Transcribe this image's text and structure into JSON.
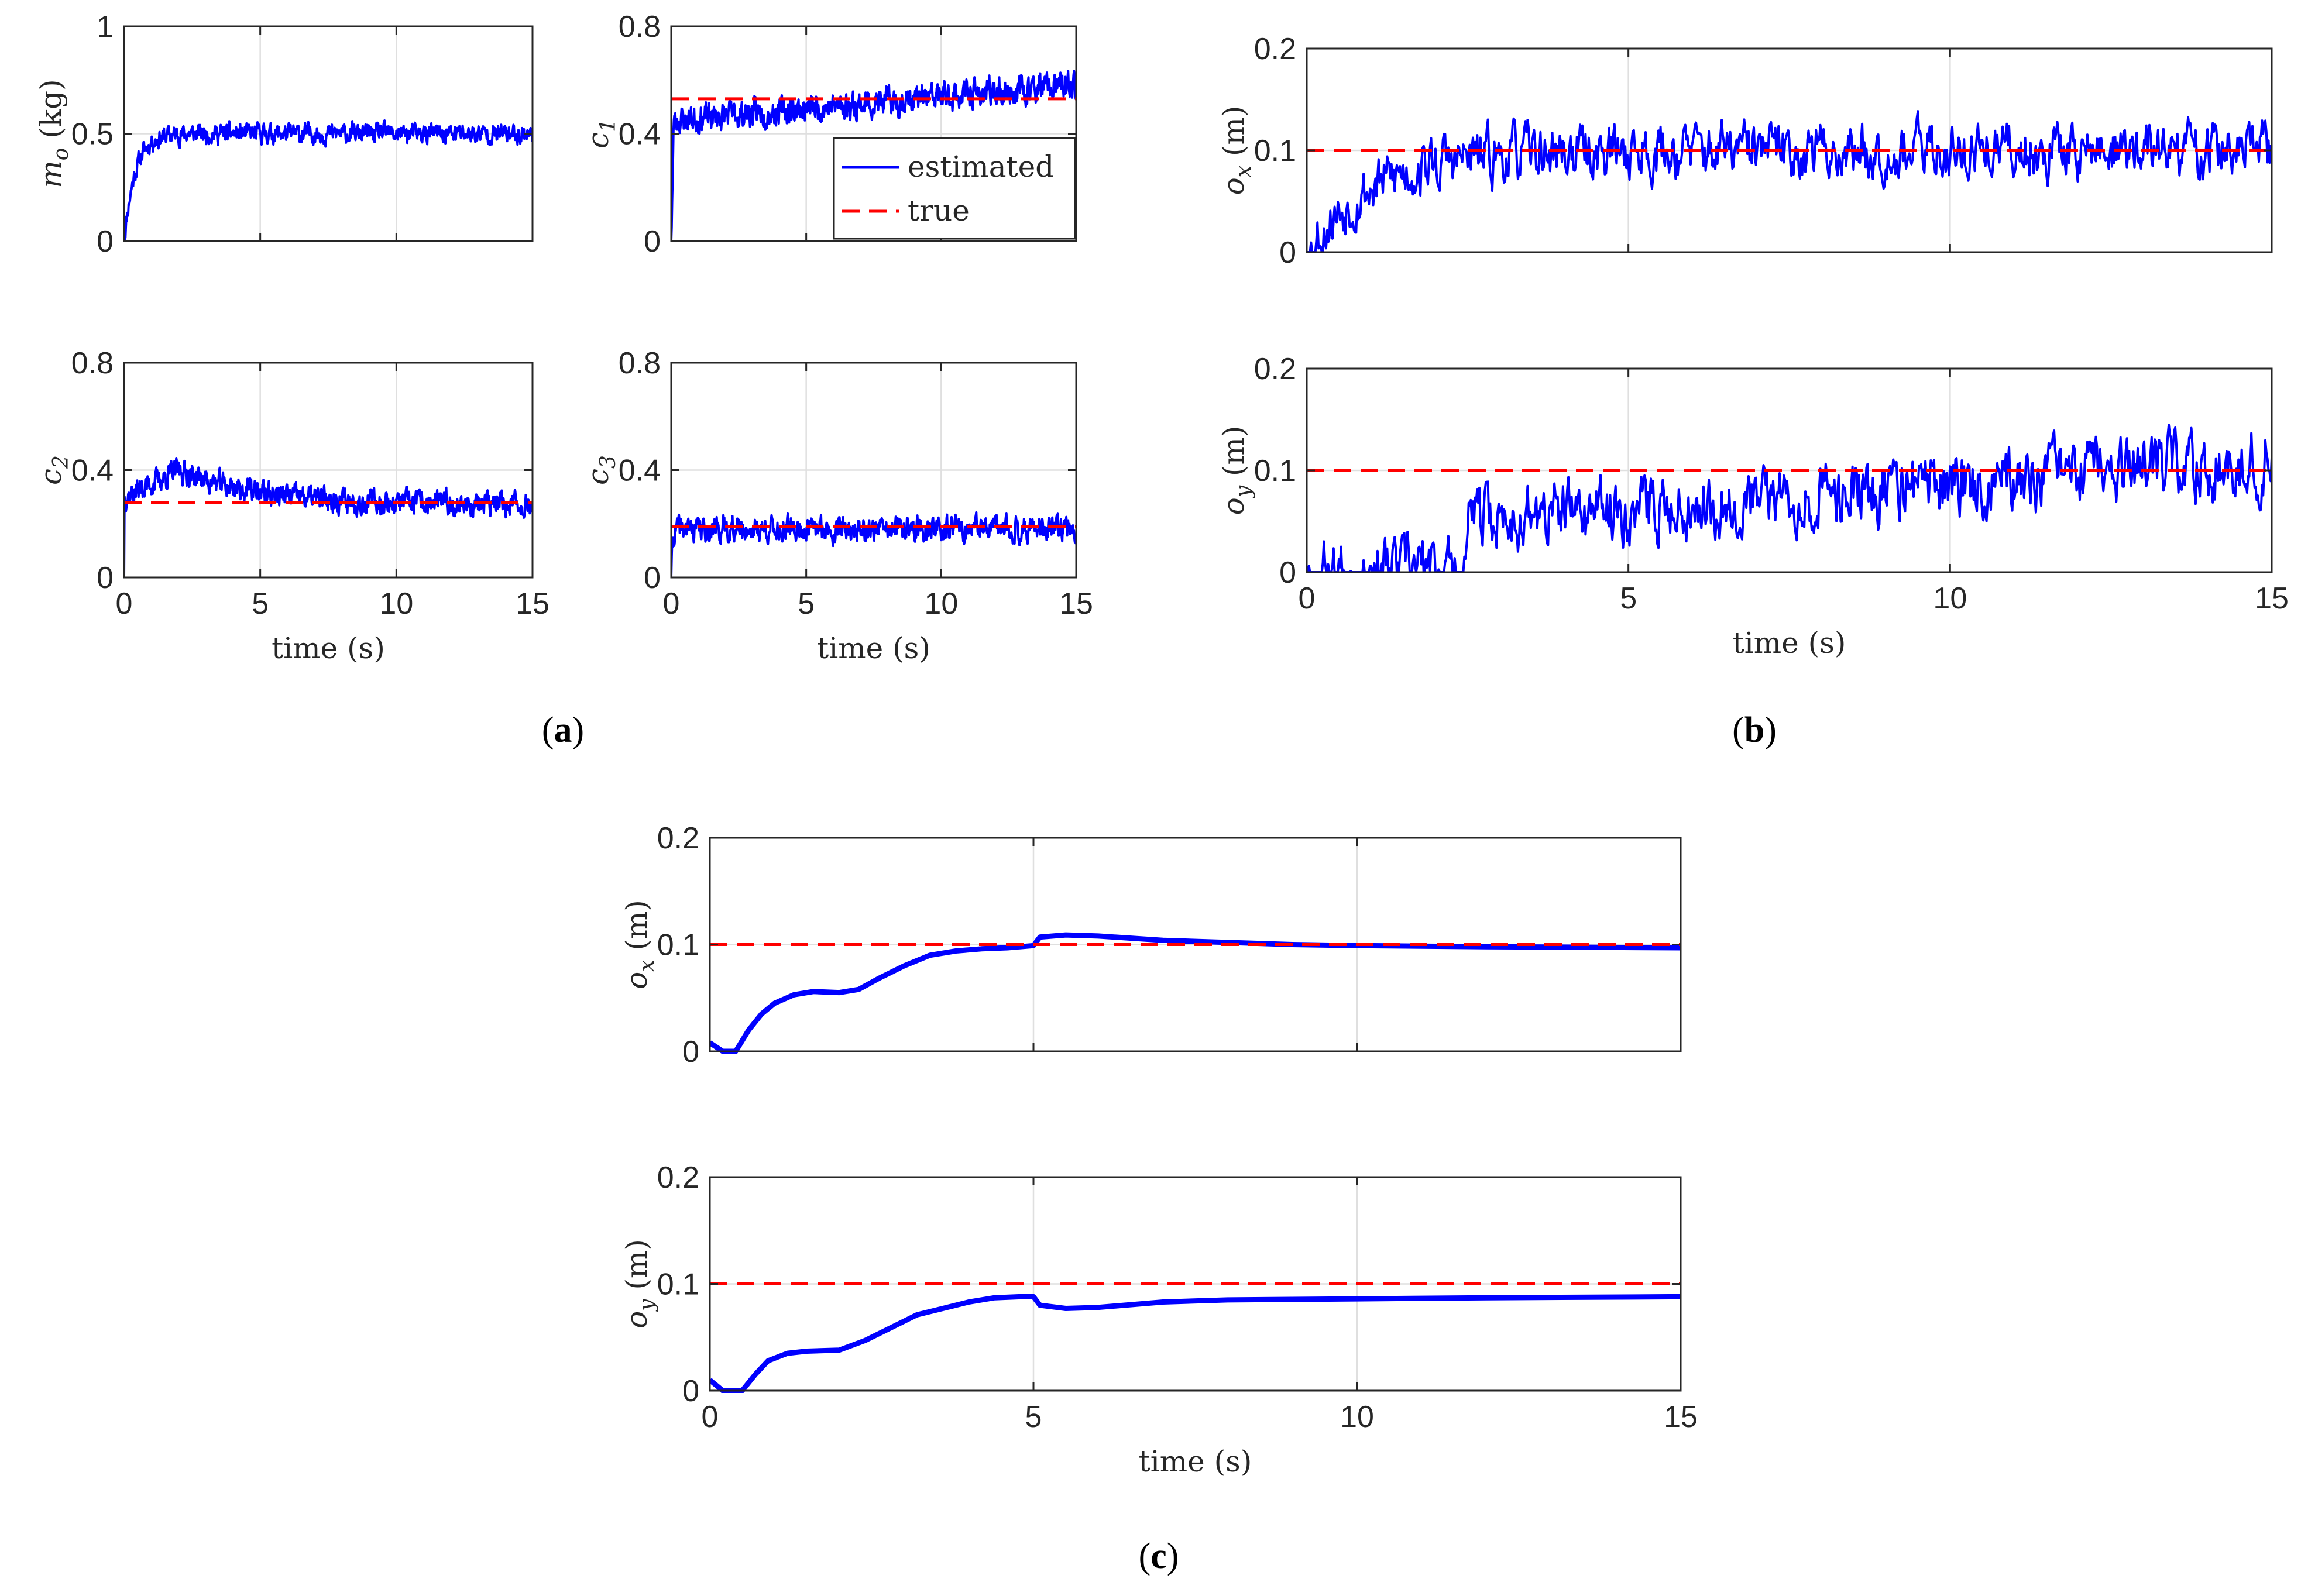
{
  "colors": {
    "estimated": "#0000ff",
    "true": "#ff0000",
    "axis": "#262626",
    "grid": "#dfdfdf"
  },
  "legend": {
    "estimated": "estimated",
    "true": "true",
    "placement": "top-right of panel c1"
  },
  "captions": {
    "a": "a",
    "b": "b",
    "c": "c"
  },
  "chart_data": [
    {
      "id": "a_mo",
      "group": "a",
      "type": "line",
      "title": "",
      "ylabel": {
        "sym": "m",
        "sub": "o",
        "unit": " (kg)"
      },
      "xlabel": "",
      "xlim": [
        0,
        15
      ],
      "ylim": [
        0,
        1
      ],
      "yticks": [
        "0",
        "0.5",
        "1"
      ],
      "xticks": [],
      "true_value": null,
      "series": [
        {
          "name": "estimated",
          "kind": "noisy",
          "steady": 0.5,
          "rise_time": 0.4,
          "noise": 0.035,
          "seed": 11
        }
      ],
      "grid": true
    },
    {
      "id": "a_c1",
      "group": "a",
      "type": "line",
      "title": "",
      "ylabel": {
        "sym": "c",
        "sub": "1",
        "unit": ""
      },
      "xlabel": "",
      "xlim": [
        0,
        15
      ],
      "ylim": [
        0,
        0.8
      ],
      "yticks": [
        "0",
        "0.4",
        "0.8"
      ],
      "xticks": [],
      "true_value": 0.53,
      "series": [
        {
          "name": "estimated",
          "kind": "noisy_drift",
          "start": 0.45,
          "end": 0.58,
          "noise": 0.04,
          "seed": 23
        },
        {
          "name": "true",
          "value": 0.53
        }
      ],
      "grid": true,
      "legend": true
    },
    {
      "id": "a_c2",
      "group": "a",
      "type": "line",
      "title": "",
      "ylabel": {
        "sym": "c",
        "sub": "2",
        "unit": ""
      },
      "xlabel": "time (s)",
      "xlim": [
        0,
        15
      ],
      "ylim": [
        0,
        0.8
      ],
      "yticks": [
        "0",
        "0.4",
        "0.8"
      ],
      "xticks": [
        "0",
        "5",
        "10",
        "15"
      ],
      "true_value": 0.28,
      "series": [
        {
          "name": "estimated",
          "kind": "noisy_decay",
          "peak": 0.4,
          "peak_time": 2,
          "end": 0.27,
          "noise": 0.035,
          "seed": 37
        },
        {
          "name": "true",
          "value": 0.28
        }
      ],
      "grid": true
    },
    {
      "id": "a_c3",
      "group": "a",
      "type": "line",
      "title": "",
      "ylabel": {
        "sym": "c",
        "sub": "3",
        "unit": ""
      },
      "xlabel": "time (s)",
      "xlim": [
        0,
        15
      ],
      "ylim": [
        0,
        0.8
      ],
      "yticks": [
        "0",
        "0.4",
        "0.8"
      ],
      "xticks": [
        "0",
        "5",
        "10",
        "15"
      ],
      "true_value": 0.19,
      "series": [
        {
          "name": "estimated",
          "kind": "noisy",
          "steady": 0.18,
          "rise_time": 0.05,
          "noise": 0.035,
          "seed": 41
        },
        {
          "name": "true",
          "value": 0.19
        }
      ],
      "grid": true
    },
    {
      "id": "b_ox",
      "group": "b",
      "type": "line",
      "title": "",
      "ylabel": {
        "sym": "o",
        "sub": "x",
        "unit": " (m)"
      },
      "xlabel": "",
      "xlim": [
        0,
        15
      ],
      "ylim": [
        0,
        0.2
      ],
      "yticks": [
        "0",
        "0.1",
        "0.2"
      ],
      "xticks": [],
      "true_value": 0.1,
      "series": [
        {
          "name": "estimated",
          "kind": "noisy",
          "steady": 0.1,
          "rise_time": 1.0,
          "noise": 0.022,
          "seed": 53
        },
        {
          "name": "true",
          "value": 0.1
        }
      ],
      "grid": true
    },
    {
      "id": "b_oy",
      "group": "b",
      "type": "line",
      "title": "",
      "ylabel": {
        "sym": "o",
        "sub": "y",
        "unit": " (m)"
      },
      "xlabel": "time (s)",
      "xlim": [
        0,
        15
      ],
      "ylim": [
        0,
        0.2
      ],
      "yticks": [
        "0",
        "0.1",
        "0.2"
      ],
      "xticks": [
        "0",
        "5",
        "10",
        "15"
      ],
      "true_value": 0.1,
      "series": [
        {
          "name": "estimated",
          "kind": "noisy_ramp",
          "delay": 2.5,
          "start": 0.05,
          "end": 0.11,
          "noise": 0.025,
          "seed": 67
        },
        {
          "name": "true",
          "value": 0.1
        }
      ],
      "grid": true
    },
    {
      "id": "c_ox",
      "group": "c",
      "type": "line",
      "title": "",
      "ylabel": {
        "sym": "o",
        "sub": "x",
        "unit": " (m)"
      },
      "xlabel": "",
      "xlim": [
        0,
        15
      ],
      "ylim": [
        0,
        0.2
      ],
      "yticks": [
        "0",
        "0.1",
        "0.2"
      ],
      "xticks": [],
      "true_value": 0.1,
      "series": [
        {
          "name": "estimated",
          "kind": "smooth",
          "x": [
            0,
            0.2,
            0.4,
            0.6,
            0.8,
            1.0,
            1.3,
            1.6,
            2.0,
            2.3,
            2.6,
            3.0,
            3.4,
            3.8,
            4.2,
            4.6,
            5.0,
            5.1,
            5.5,
            6.0,
            7.0,
            8.0,
            9.0,
            10.0,
            12.0,
            15.0
          ],
          "y": [
            0.008,
            0.0,
            0.0,
            0.02,
            0.035,
            0.045,
            0.053,
            0.056,
            0.055,
            0.058,
            0.068,
            0.08,
            0.09,
            0.094,
            0.096,
            0.097,
            0.099,
            0.107,
            0.109,
            0.108,
            0.104,
            0.102,
            0.1,
            0.099,
            0.098,
            0.097
          ]
        },
        {
          "name": "true",
          "value": 0.1
        }
      ],
      "grid": true
    },
    {
      "id": "c_oy",
      "group": "c",
      "type": "line",
      "title": "",
      "ylabel": {
        "sym": "o",
        "sub": "y",
        "unit": " (m)"
      },
      "xlabel": "time (s)",
      "xlim": [
        0,
        15
      ],
      "ylim": [
        0,
        0.2
      ],
      "yticks": [
        "0",
        "0.1",
        "0.2"
      ],
      "xticks": [
        "0",
        "5",
        "10",
        "15"
      ],
      "true_value": 0.1,
      "series": [
        {
          "name": "estimated",
          "kind": "smooth",
          "x": [
            0,
            0.2,
            0.4,
            0.5,
            0.7,
            0.9,
            1.2,
            1.5,
            2.0,
            2.4,
            2.8,
            3.2,
            3.6,
            4.0,
            4.4,
            4.8,
            5.0,
            5.1,
            5.5,
            6.0,
            7.0,
            8.0,
            10.0,
            12.0,
            15.0
          ],
          "y": [
            0.01,
            0.0,
            0.0,
            0.0,
            0.015,
            0.028,
            0.035,
            0.037,
            0.038,
            0.047,
            0.059,
            0.071,
            0.077,
            0.083,
            0.087,
            0.088,
            0.088,
            0.08,
            0.077,
            0.078,
            0.083,
            0.085,
            0.086,
            0.087,
            0.088
          ]
        },
        {
          "name": "true",
          "value": 0.1
        }
      ],
      "grid": true
    }
  ]
}
